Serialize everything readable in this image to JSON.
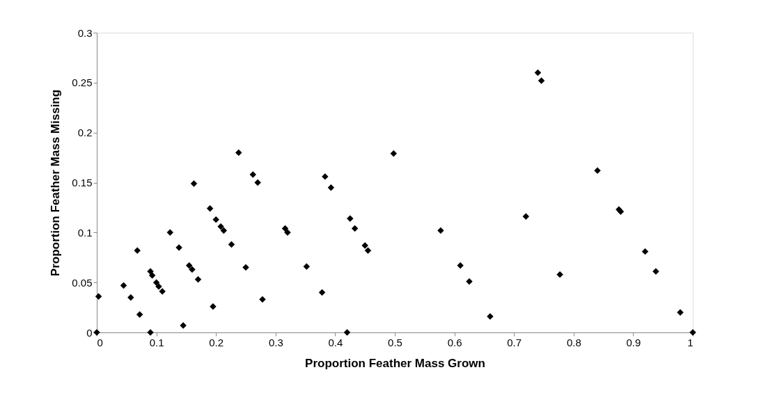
{
  "chart_data": {
    "type": "scatter",
    "xlabel": "Proportion Feather Mass Grown",
    "ylabel": "Proportion Feather Mass Missing",
    "xlim": [
      0,
      1
    ],
    "xticks": [
      0,
      0.1,
      0.2,
      0.3,
      0.4,
      0.5,
      0.6,
      0.7,
      0.8,
      0.9,
      1
    ],
    "ylim": [
      0,
      0.3
    ],
    "yticks": [
      0,
      0.05,
      0.1,
      0.15,
      0.2,
      0.25,
      0.3
    ],
    "grid": false,
    "legend": false,
    "marker": "diamond",
    "series": [
      {
        "color": "#000000",
        "x": [
          0,
          0.003,
          0.045,
          0.057,
          0.068,
          0.072,
          0.09,
          0.093,
          0.09,
          0.1,
          0.104,
          0.11,
          0.123,
          0.138,
          0.145,
          0.155,
          0.16,
          0.163,
          0.17,
          0.19,
          0.195,
          0.2,
          0.208,
          0.213,
          0.226,
          0.238,
          0.25,
          0.262,
          0.27,
          0.278,
          0.316,
          0.32,
          0.352,
          0.378,
          0.383,
          0.393,
          0.42,
          0.425,
          0.433,
          0.45,
          0.455,
          0.498,
          0.577,
          0.61,
          0.625,
          0.66,
          0.72,
          0.74,
          0.746,
          0.777,
          0.84,
          0.876,
          0.879,
          0.92,
          0.938,
          0.979,
          1.0
        ],
        "values": [
          0,
          0.036,
          0.047,
          0.035,
          0.082,
          0.018,
          0.061,
          0.057,
          0,
          0.05,
          0.046,
          0.041,
          0.1,
          0.085,
          0.007,
          0.067,
          0.063,
          0.149,
          0.053,
          0.124,
          0.026,
          0.113,
          0.106,
          0.102,
          0.088,
          0.18,
          0.065,
          0.158,
          0.15,
          0.033,
          0.104,
          0.1,
          0.066,
          0.04,
          0.156,
          0.145,
          0,
          0.114,
          0.104,
          0.087,
          0.082,
          0.179,
          0.102,
          0.067,
          0.051,
          0.016,
          0.116,
          0.26,
          0.252,
          0.058,
          0.162,
          0.123,
          0.121,
          0.081,
          0.061,
          0.02,
          0
        ]
      }
    ]
  }
}
